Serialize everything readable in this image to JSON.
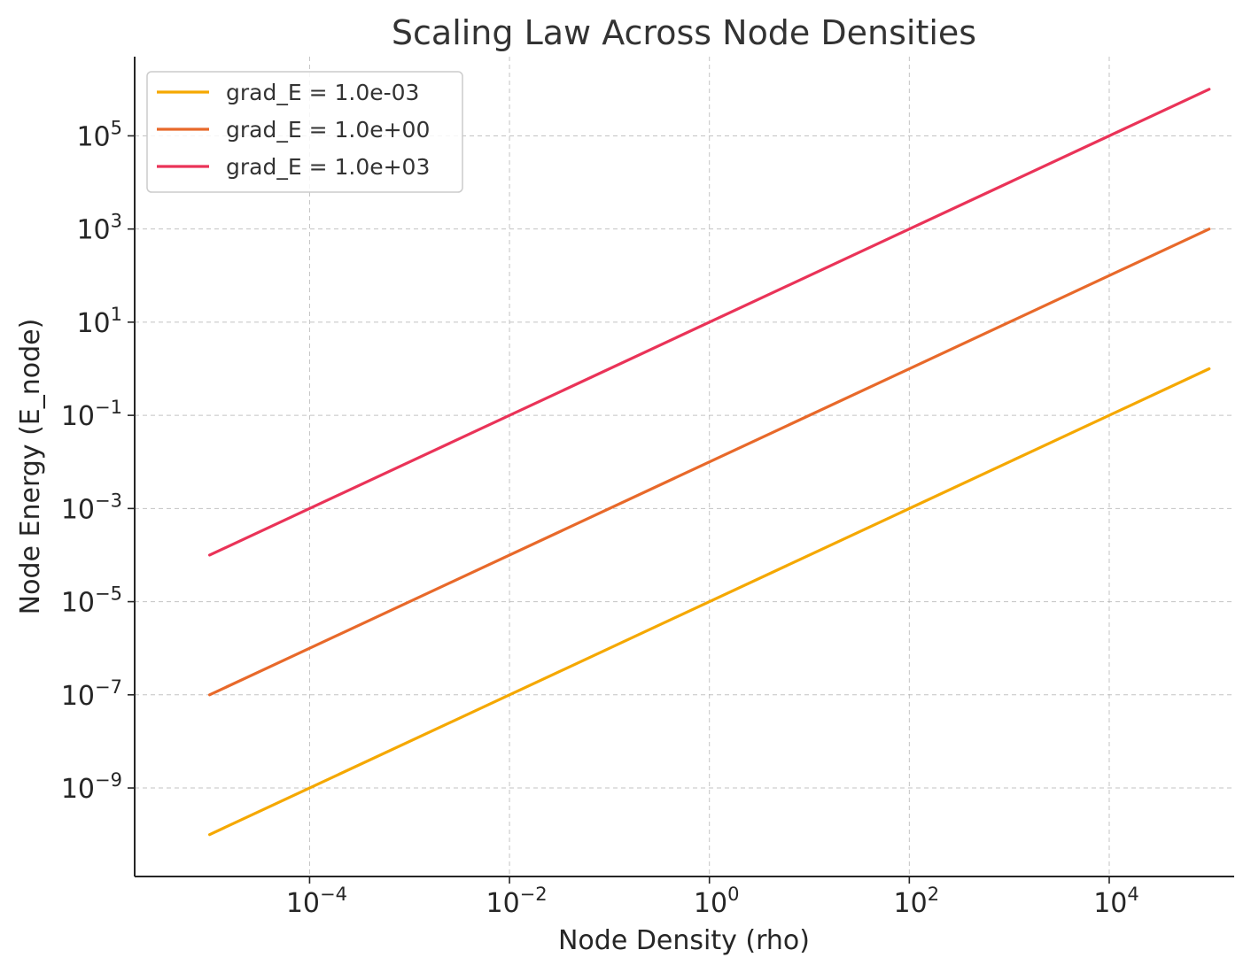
{
  "chart_data": {
    "type": "line",
    "title": "Scaling Law Across Node Densities",
    "xlabel": "Node Density (rho)",
    "ylabel": "Node Energy (E_node)",
    "xscale": "log",
    "yscale": "log",
    "xlim_exp": [
      -5.75,
      5.25
    ],
    "ylim_exp": [
      -10.9,
      6.7
    ],
    "x_ticks": [
      {
        "base": "10",
        "exp": "−4"
      },
      {
        "base": "10",
        "exp": "−2"
      },
      {
        "base": "10",
        "exp": "0"
      },
      {
        "base": "10",
        "exp": "2"
      },
      {
        "base": "10",
        "exp": "4"
      }
    ],
    "x_tick_values": [
      -4,
      -2,
      0,
      2,
      4
    ],
    "y_ticks": [
      {
        "base": "10",
        "exp": "−9"
      },
      {
        "base": "10",
        "exp": "−7"
      },
      {
        "base": "10",
        "exp": "−5"
      },
      {
        "base": "10",
        "exp": "−3"
      },
      {
        "base": "10",
        "exp": "−1"
      },
      {
        "base": "10",
        "exp": "1"
      },
      {
        "base": "10",
        "exp": "3"
      },
      {
        "base": "10",
        "exp": "5"
      }
    ],
    "y_tick_values": [
      -9,
      -7,
      -5,
      -3,
      -1,
      1,
      3,
      5
    ],
    "grid": true,
    "legend_position": "top-left",
    "series": [
      {
        "name": "grad_E = 1.0e-03",
        "color": "#f5a800",
        "x": [
          1e-05,
          100000
        ],
        "y": [
          1e-10,
          1
        ]
      },
      {
        "name": "grad_E = 1.0e+00",
        "color": "#e8692a",
        "x": [
          1e-05,
          100000
        ],
        "y": [
          1e-07,
          1000
        ]
      },
      {
        "name": "grad_E = 1.0e+03",
        "color": "#ea3358",
        "x": [
          1e-05,
          100000
        ],
        "y": [
          0.0001,
          1000000
        ]
      }
    ]
  }
}
